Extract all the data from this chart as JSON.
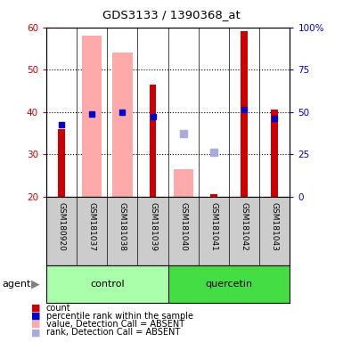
{
  "title": "GDS3133 / 1390368_at",
  "samples": [
    "GSM180920",
    "GSM181037",
    "GSM181038",
    "GSM181039",
    "GSM181040",
    "GSM181041",
    "GSM181042",
    "GSM181043"
  ],
  "count_values": [
    36,
    null,
    null,
    46.5,
    null,
    20.5,
    59,
    40.5
  ],
  "percentile_values": [
    37,
    39.5,
    40,
    39,
    null,
    null,
    40.5,
    38.5
  ],
  "absent_value_bars": [
    null,
    58,
    54,
    null,
    26.5,
    null,
    null,
    null
  ],
  "absent_rank_points": [
    null,
    null,
    null,
    null,
    35,
    30.5,
    null,
    null
  ],
  "ylim": [
    20,
    60
  ],
  "y2lim": [
    0,
    100
  ],
  "yticks": [
    20,
    30,
    40,
    50,
    60
  ],
  "y2ticks": [
    0,
    25,
    50,
    75,
    100
  ],
  "y2ticklabels": [
    "0",
    "25",
    "50",
    "75",
    "100%"
  ],
  "red_color": "#cc0000",
  "blue_color": "#0000cc",
  "pink_color": "#ffaaaa",
  "light_blue_color": "#aaaadd",
  "control_light": "#aaffaa",
  "quercetin_bright": "#44dd44",
  "sample_bg": "#cccccc",
  "plot_bg": "#ffffff"
}
